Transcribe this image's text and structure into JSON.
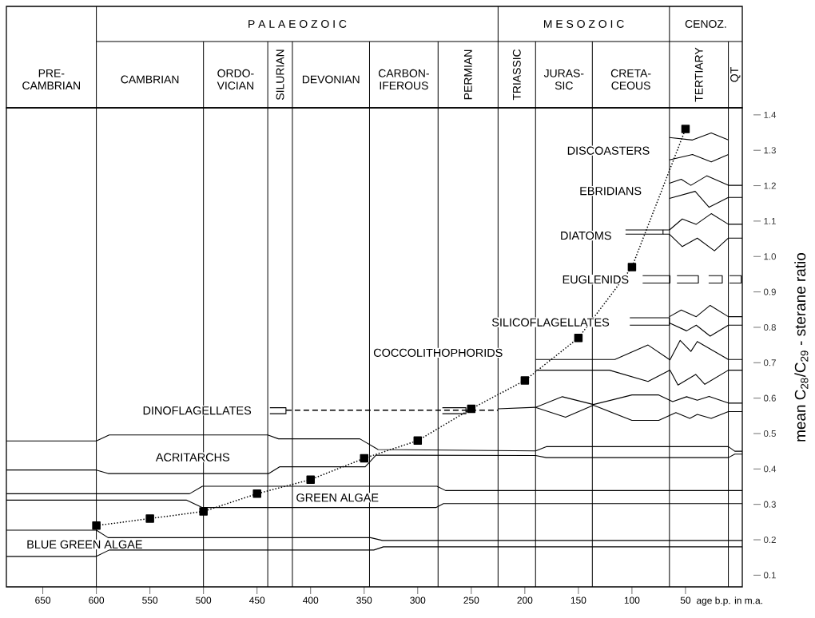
{
  "chart_data": {
    "type": "line",
    "ylabel": "mean C$_{28}$/C$_{29}$ - sterane ratio",
    "xlabel": "age b.p. in m.a.",
    "xlim": [
      684,
      -3
    ],
    "ylim": [
      0.067,
      1.42
    ],
    "xticks": [
      650,
      600,
      550,
      500,
      450,
      400,
      350,
      300,
      250,
      200,
      150,
      100,
      50
    ],
    "yticks": [
      0.1,
      0.2,
      0.3,
      0.4,
      0.5,
      0.6,
      0.7,
      0.8,
      0.9,
      {
        "value": 1.0,
        "label": "1.0"
      },
      1.1,
      1.2,
      1.3,
      1.4
    ],
    "grid": false,
    "ref_lines": [
      {
        "axis": "x",
        "value": 600
      },
      {
        "axis": "x",
        "value": 500
      },
      {
        "axis": "x",
        "value": 440
      },
      {
        "axis": "x",
        "value": 417
      },
      {
        "axis": "x",
        "value": 345
      },
      {
        "axis": "x",
        "value": 281
      },
      {
        "axis": "x",
        "value": 225
      },
      {
        "axis": "x",
        "value": 190
      },
      {
        "axis": "x",
        "value": 137
      },
      {
        "axis": "x",
        "value": 65
      },
      {
        "axis": "x",
        "value": 10
      }
    ],
    "annotations": [
      "PRE-CAMBRIAN",
      "P A L A E O Z O I C",
      "M E S O Z O I C",
      "CENOZ.",
      "CAMBRIAN",
      "ORDO-VICIAN",
      "SILURIAN",
      "DEVONIAN",
      "CARBON-IFEROUS",
      "PERMIAN",
      "TRIASSIC",
      "JURAS-SIC",
      "CRETA-CEOUS",
      "TERTIARY",
      "QT",
      "BLUE GREEN ALGAE",
      "ACRITARCHS",
      "GREEN ALGAE",
      "DINOFLAGELLATES",
      "COCCOLITHOPHORIDS",
      "SILICOFLAGELLATES",
      "EUGLENIDS",
      "DIATOMS",
      "EBRIDIANS",
      "DISCOASTERS"
    ],
    "series": [
      {
        "color": "#000000",
        "x": [
          684,
          600,
          589,
          344,
          333,
          -3
        ],
        "values": [
          0.227,
          0.227,
          0.206,
          0.206,
          0.198,
          0.198
        ]
      },
      {
        "color": "#000000",
        "x": [
          684,
          600,
          588,
          341,
          332,
          -3
        ],
        "values": [
          0.153,
          0.153,
          0.171,
          0.171,
          0.18,
          0.18
        ]
      },
      {
        "color": "#000000",
        "x": [
          684,
          513,
          501,
          282,
          274,
          -3
        ],
        "values": [
          0.33,
          0.33,
          0.351,
          0.351,
          0.339,
          0.339
        ]
      },
      {
        "color": "#000000",
        "x": [
          684,
          516,
          501,
          283,
          276,
          -3
        ],
        "values": [
          0.312,
          0.312,
          0.291,
          0.291,
          0.302,
          0.302
        ]
      },
      {
        "color": "#000000",
        "x": [
          684,
          600,
          588,
          440,
          430,
          354,
          337,
          190,
          180,
          10,
          4,
          -3
        ],
        "values": [
          0.479,
          0.479,
          0.496,
          0.496,
          0.485,
          0.485,
          0.455,
          0.451,
          0.463,
          0.463,
          0.45,
          0.45
        ]
      },
      {
        "color": "#000000",
        "x": [
          684,
          600,
          589,
          439,
          429,
          349,
          339,
          190,
          180,
          10,
          4,
          -3
        ],
        "values": [
          0.397,
          0.397,
          0.387,
          0.387,
          0.406,
          0.406,
          0.439,
          0.438,
          0.432,
          0.432,
          0.442,
          0.442
        ]
      },
      {
        "color": "#000000",
        "x": [
          438,
          423,
          423,
          438
        ],
        "values": [
          0.573,
          0.573,
          0.556,
          0.556
        ]
      },
      {
        "color": "#000000",
        "x": [
          277,
          255,
          255,
          277
        ],
        "values": [
          0.573,
          0.573,
          0.556,
          0.556
        ]
      },
      {
        "color": "#000000",
        "line_style": "dashed",
        "x": [
          423,
          225
        ],
        "values": [
          0.566,
          0.566
        ]
      },
      {
        "color": "#000000",
        "x": [
          225,
          190,
          165,
          136,
          100,
          75,
          62,
          49,
          39,
          28,
          10,
          -3
        ],
        "values": [
          0.57,
          0.574,
          0.604,
          0.582,
          0.609,
          0.609,
          0.59,
          0.604,
          0.594,
          0.605,
          0.586,
          0.586
        ]
      },
      {
        "color": "#000000",
        "x": [
          190,
          162,
          136,
          100,
          75,
          59,
          46,
          39,
          26,
          10,
          -3
        ],
        "values": [
          0.574,
          0.546,
          0.58,
          0.537,
          0.537,
          0.559,
          0.543,
          0.554,
          0.543,
          0.562,
          0.562
        ]
      },
      {
        "color": "#000000",
        "x": [
          190,
          116,
          85,
          64.5,
          55,
          45,
          39,
          10,
          -3
        ],
        "values": [
          0.709,
          0.709,
          0.75,
          0.708,
          0.763,
          0.732,
          0.76,
          0.709,
          0.709
        ]
      },
      {
        "color": "#000000",
        "x": [
          190,
          121,
          85,
          64.5,
          57,
          40.5,
          32,
          10,
          -3
        ],
        "values": [
          0.679,
          0.679,
          0.647,
          0.679,
          0.637,
          0.667,
          0.639,
          0.679,
          0.679
        ]
      },
      {
        "color": "#000000",
        "x": [
          102,
          65,
          65,
          102
        ],
        "values": [
          0.827,
          0.827,
          0.806,
          0.806
        ]
      },
      {
        "color": "#000000",
        "x": [
          65,
          54,
          40,
          27,
          10,
          -3
        ],
        "values": [
          0.83,
          0.849,
          0.83,
          0.862,
          0.83,
          0.83
        ]
      },
      {
        "color": "#000000",
        "x": [
          65,
          49,
          40,
          27,
          10,
          -3
        ],
        "values": [
          0.812,
          0.79,
          0.806,
          0.775,
          0.806,
          0.806
        ]
      },
      {
        "color": "#000000",
        "x": [
          90,
          64.5,
          64.5,
          90
        ],
        "values": [
          0.946,
          0.946,
          0.925,
          0.925
        ]
      },
      {
        "color": "#000000",
        "x": [
          58,
          38,
          38,
          58
        ],
        "values": [
          0.946,
          0.946,
          0.925,
          0.925
        ]
      },
      {
        "color": "#000000",
        "x": [
          28.4,
          15.7,
          15.7,
          28.4
        ],
        "values": [
          0.946,
          0.946,
          0.925,
          0.925
        ]
      },
      {
        "color": "#000000",
        "x": [
          9,
          -2,
          -2,
          9
        ],
        "values": [
          0.946,
          0.946,
          0.925,
          0.925
        ]
      },
      {
        "color": "#000000",
        "x": [
          106,
          71,
          71,
          106
        ],
        "values": [
          1.075,
          1.075,
          1.063,
          1.063
        ]
      },
      {
        "color": "#000000",
        "x": [
          71,
          65,
          53,
          40,
          26,
          10,
          -3
        ],
        "values": [
          1.075,
          1.075,
          1.106,
          1.091,
          1.121,
          1.091,
          1.091
        ]
      },
      {
        "color": "#000000",
        "x": [
          71,
          65,
          53,
          39,
          23,
          10,
          -3
        ],
        "values": [
          1.063,
          1.063,
          1.028,
          1.052,
          1.016,
          1.052,
          1.052
        ]
      },
      {
        "color": "#000000",
        "x": [
          65,
          54,
          45,
          30,
          10,
          -3
        ],
        "values": [
          1.207,
          1.218,
          1.201,
          1.228,
          1.201,
          1.201
        ]
      },
      {
        "color": "#000000",
        "x": [
          65,
          41,
          28,
          10,
          -3
        ],
        "values": [
          1.164,
          1.184,
          1.139,
          1.167,
          1.167
        ]
      },
      {
        "color": "#000000",
        "x": [
          65,
          43.5,
          26,
          10
        ],
        "values": [
          1.336,
          1.329,
          1.349,
          1.329
        ]
      },
      {
        "color": "#000000",
        "x": [
          65,
          43.5,
          26,
          10
        ],
        "values": [
          1.273,
          1.288,
          1.267,
          1.288
        ]
      },
      {
        "color": "#000000",
        "marker": "square",
        "line_style": "dotted",
        "x": [
          600,
          550,
          500,
          450,
          400,
          350,
          300,
          250,
          200,
          150,
          100,
          50
        ],
        "values": [
          0.24,
          0.26,
          0.28,
          0.33,
          0.37,
          0.43,
          0.48,
          0.57,
          0.65,
          0.77,
          0.97,
          1.36
        ]
      }
    ]
  }
}
